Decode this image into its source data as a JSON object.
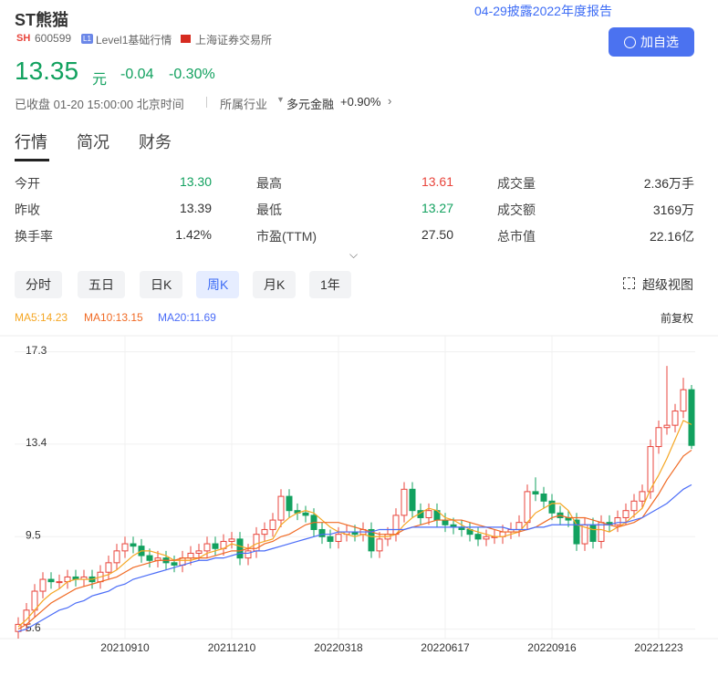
{
  "header": {
    "name": "ST熊猫",
    "market": "SH",
    "code": "600599",
    "level_icon": "L1",
    "level": "Level1基础行情",
    "exchange": "上海证券交易所",
    "notice": "04-29披露2022年度报告",
    "add_button": "加自选"
  },
  "quote": {
    "price": "13.35",
    "unit": "元",
    "change": "-0.04",
    "change_pct": "-0.30%",
    "status": "已收盘 01-20 15:00:00 北京时间",
    "industry_label": "所属行业",
    "industry": "多元金融",
    "industry_change": "+0.90%"
  },
  "tabs": [
    "行情",
    "简况",
    "财务"
  ],
  "stats": [
    [
      "今开",
      "13.30",
      "最高",
      "13.61",
      "成交量",
      "2.36万手"
    ],
    [
      "昨收",
      "13.39",
      "最低",
      "13.27",
      "成交额",
      "3169万"
    ],
    [
      "换手率",
      "1.42%",
      "市盈(TTM)",
      "27.50",
      "总市值",
      "22.16亿"
    ]
  ],
  "periods": [
    "分时",
    "五日",
    "日K",
    "周K",
    "月K",
    "1年"
  ],
  "super_view": "超级视图",
  "adjust": "前复权",
  "chart_data": {
    "type": "candlestick",
    "categories": [
      null,
      null,
      null,
      null,
      null,
      null,
      null,
      null,
      null,
      null,
      null,
      null,
      null,
      "20210910",
      null,
      null,
      null,
      null,
      null,
      null,
      null,
      null,
      null,
      null,
      null,
      null,
      "20211210",
      null,
      null,
      null,
      null,
      null,
      null,
      null,
      null,
      null,
      null,
      null,
      null,
      "20220318",
      null,
      null,
      null,
      null,
      null,
      null,
      null,
      null,
      null,
      null,
      null,
      null,
      "20220617",
      null,
      null,
      null,
      null,
      null,
      null,
      null,
      null,
      null,
      null,
      null,
      null,
      "20220916",
      null,
      null,
      null,
      null,
      null,
      null,
      null,
      null,
      null,
      null,
      null,
      null,
      "20221223",
      null,
      null,
      null,
      null
    ],
    "open": [
      5.5,
      5.8,
      6.4,
      7.2,
      7.7,
      7.6,
      7.6,
      7.8,
      7.7,
      7.8,
      7.6,
      8.0,
      8.4,
      8.9,
      9.2,
      9.1,
      8.7,
      8.5,
      8.6,
      8.4,
      8.3,
      8.6,
      8.8,
      8.9,
      9.2,
      9.0,
      9.3,
      9.4,
      8.6,
      8.9,
      9.6,
      9.8,
      10.2,
      11.2,
      10.6,
      10.5,
      10.4,
      9.8,
      9.5,
      9.3,
      9.6,
      9.7,
      9.6,
      9.8,
      8.9,
      9.4,
      9.6,
      10.4,
      11.5,
      10.6,
      10.3,
      10.6,
      10.2,
      10.0,
      9.9,
      9.8,
      9.6,
      9.4,
      9.5,
      9.5,
      9.7,
      9.8,
      10.1,
      11.4,
      11.3,
      11.0,
      10.5,
      10.3,
      10.2,
      9.2,
      10.0,
      9.3,
      10.1,
      10.0,
      10.3,
      10.6,
      11.0,
      11.4,
      13.3,
      14.1,
      14.2,
      14.8,
      15.7
    ],
    "high": [
      6.1,
      6.7,
      7.5,
      8.0,
      8.0,
      7.9,
      8.1,
      8.1,
      8.1,
      8.1,
      8.3,
      8.7,
      9.2,
      9.5,
      9.5,
      9.4,
      9.0,
      8.9,
      8.9,
      8.7,
      8.9,
      9.1,
      9.2,
      9.5,
      9.5,
      9.6,
      9.7,
      9.7,
      9.2,
      9.9,
      10.1,
      10.5,
      11.5,
      11.5,
      10.9,
      10.8,
      10.7,
      10.1,
      9.8,
      9.9,
      10.0,
      10.0,
      10.1,
      10.1,
      9.7,
      9.9,
      10.7,
      11.8,
      11.8,
      10.9,
      10.9,
      10.9,
      10.5,
      10.3,
      10.2,
      10.1,
      9.9,
      9.8,
      9.8,
      10.0,
      10.1,
      10.4,
      11.7,
      12.0,
      11.6,
      11.3,
      10.8,
      10.6,
      10.5,
      10.3,
      10.3,
      10.4,
      10.4,
      10.6,
      10.9,
      11.3,
      11.7,
      13.6,
      14.4,
      16.7,
      15.1,
      16.2,
      15.9
    ],
    "low": [
      5.2,
      5.5,
      6.1,
      6.9,
      7.3,
      7.3,
      7.3,
      7.4,
      7.4,
      7.3,
      7.3,
      7.7,
      8.1,
      8.6,
      8.8,
      8.4,
      8.2,
      8.2,
      8.1,
      8.0,
      8.0,
      8.3,
      8.5,
      8.6,
      8.7,
      8.7,
      9.0,
      8.3,
      8.3,
      8.6,
      9.3,
      9.5,
      9.9,
      10.3,
      10.2,
      10.1,
      9.5,
      9.2,
      9.0,
      9.0,
      9.3,
      9.3,
      9.3,
      8.6,
      8.6,
      9.1,
      9.3,
      10.1,
      10.3,
      10.0,
      10.0,
      9.9,
      9.7,
      9.6,
      9.5,
      9.3,
      9.1,
      9.1,
      9.2,
      9.2,
      9.4,
      9.5,
      9.8,
      11.0,
      10.7,
      10.2,
      10.0,
      9.9,
      8.9,
      8.9,
      9.0,
      9.0,
      9.7,
      9.7,
      10.0,
      10.3,
      10.7,
      11.1,
      13.0,
      13.8,
      13.9,
      14.5,
      13.2
    ],
    "close": [
      5.8,
      6.4,
      7.2,
      7.7,
      7.6,
      7.6,
      7.8,
      7.7,
      7.8,
      7.6,
      8.0,
      8.4,
      8.9,
      9.2,
      9.1,
      8.7,
      8.5,
      8.6,
      8.4,
      8.3,
      8.6,
      8.8,
      8.9,
      9.2,
      9.0,
      9.3,
      9.4,
      8.6,
      8.9,
      9.6,
      9.8,
      10.2,
      11.2,
      10.6,
      10.5,
      10.4,
      9.8,
      9.5,
      9.3,
      9.6,
      9.7,
      9.6,
      9.8,
      8.9,
      9.4,
      9.6,
      10.4,
      11.5,
      10.6,
      10.3,
      10.6,
      10.2,
      10.0,
      9.9,
      9.8,
      9.6,
      9.4,
      9.5,
      9.5,
      9.7,
      9.8,
      10.1,
      11.4,
      11.3,
      11.0,
      10.5,
      10.3,
      10.2,
      9.2,
      10.0,
      9.3,
      10.1,
      10.0,
      10.3,
      10.6,
      11.0,
      11.4,
      13.3,
      14.1,
      14.2,
      14.8,
      15.7,
      13.35
    ],
    "up_color": "#e8453c",
    "down_color": "#12a15f",
    "series": [
      {
        "name": "MA5:14.23",
        "color": "#f5a623",
        "values": [
          5.7,
          6.0,
          6.4,
          6.8,
          7.1,
          7.3,
          7.6,
          7.7,
          7.7,
          7.7,
          7.8,
          7.9,
          8.1,
          8.4,
          8.7,
          8.9,
          8.9,
          8.8,
          8.7,
          8.5,
          8.5,
          8.5,
          8.6,
          8.8,
          8.9,
          9.0,
          9.2,
          9.1,
          9.0,
          9.2,
          9.3,
          9.4,
          10.0,
          10.3,
          10.5,
          10.6,
          10.5,
          10.2,
          9.9,
          9.7,
          9.6,
          9.5,
          9.6,
          9.5,
          9.5,
          9.5,
          9.6,
          10.0,
          10.3,
          10.5,
          10.7,
          10.6,
          10.3,
          10.2,
          10.0,
          9.8,
          9.7,
          9.6,
          9.5,
          9.5,
          9.6,
          9.7,
          10.1,
          10.5,
          10.7,
          10.9,
          10.9,
          10.6,
          10.0,
          9.9,
          9.8,
          9.8,
          9.7,
          9.9,
          10.1,
          10.4,
          10.7,
          11.5,
          12.1,
          12.8,
          13.6,
          14.4,
          14.23
        ]
      },
      {
        "name": "MA10:13.15",
        "color": "#f06a24",
        "values": [
          5.6,
          5.8,
          6.1,
          6.4,
          6.7,
          6.9,
          7.1,
          7.3,
          7.4,
          7.5,
          7.6,
          7.7,
          7.8,
          8.0,
          8.2,
          8.3,
          8.4,
          8.5,
          8.5,
          8.5,
          8.6,
          8.6,
          8.6,
          8.6,
          8.7,
          8.8,
          8.9,
          8.9,
          9.0,
          9.0,
          9.2,
          9.3,
          9.5,
          9.6,
          9.8,
          10.0,
          10.1,
          10.1,
          10.1,
          10.1,
          10.0,
          9.9,
          9.8,
          9.7,
          9.6,
          9.6,
          9.6,
          9.8,
          9.9,
          10.0,
          10.1,
          10.2,
          10.2,
          10.2,
          10.2,
          10.1,
          10.0,
          9.9,
          9.8,
          9.7,
          9.7,
          9.7,
          9.8,
          9.9,
          10.1,
          10.3,
          10.4,
          10.3,
          10.3,
          10.3,
          10.2,
          10.1,
          10.0,
          9.9,
          10.0,
          10.1,
          10.3,
          10.8,
          11.3,
          11.9,
          12.4,
          12.9,
          13.15
        ]
      },
      {
        "name": "MA20:11.69",
        "color": "#4a6cf7",
        "values": [
          5.5,
          5.6,
          5.8,
          6.0,
          6.2,
          6.4,
          6.5,
          6.7,
          6.8,
          7.0,
          7.1,
          7.2,
          7.4,
          7.5,
          7.7,
          7.8,
          7.9,
          8.0,
          8.1,
          8.2,
          8.3,
          8.4,
          8.5,
          8.5,
          8.6,
          8.6,
          8.7,
          8.8,
          8.8,
          8.9,
          8.9,
          9.0,
          9.1,
          9.2,
          9.3,
          9.4,
          9.5,
          9.6,
          9.6,
          9.7,
          9.7,
          9.7,
          9.7,
          9.7,
          9.8,
          9.8,
          9.8,
          9.8,
          9.9,
          9.9,
          9.9,
          9.9,
          9.9,
          9.9,
          9.9,
          9.9,
          9.9,
          9.9,
          9.9,
          9.9,
          9.8,
          9.8,
          9.8,
          9.9,
          9.9,
          10.0,
          10.0,
          10.0,
          10.0,
          10.0,
          10.0,
          10.0,
          10.0,
          10.1,
          10.1,
          10.2,
          10.3,
          10.5,
          10.7,
          10.9,
          11.2,
          11.5,
          11.69
        ]
      }
    ],
    "ylim": [
      5.2,
      17.9
    ],
    "yticks": [
      5.6,
      9.5,
      13.4,
      17.3
    ],
    "grid": true
  }
}
